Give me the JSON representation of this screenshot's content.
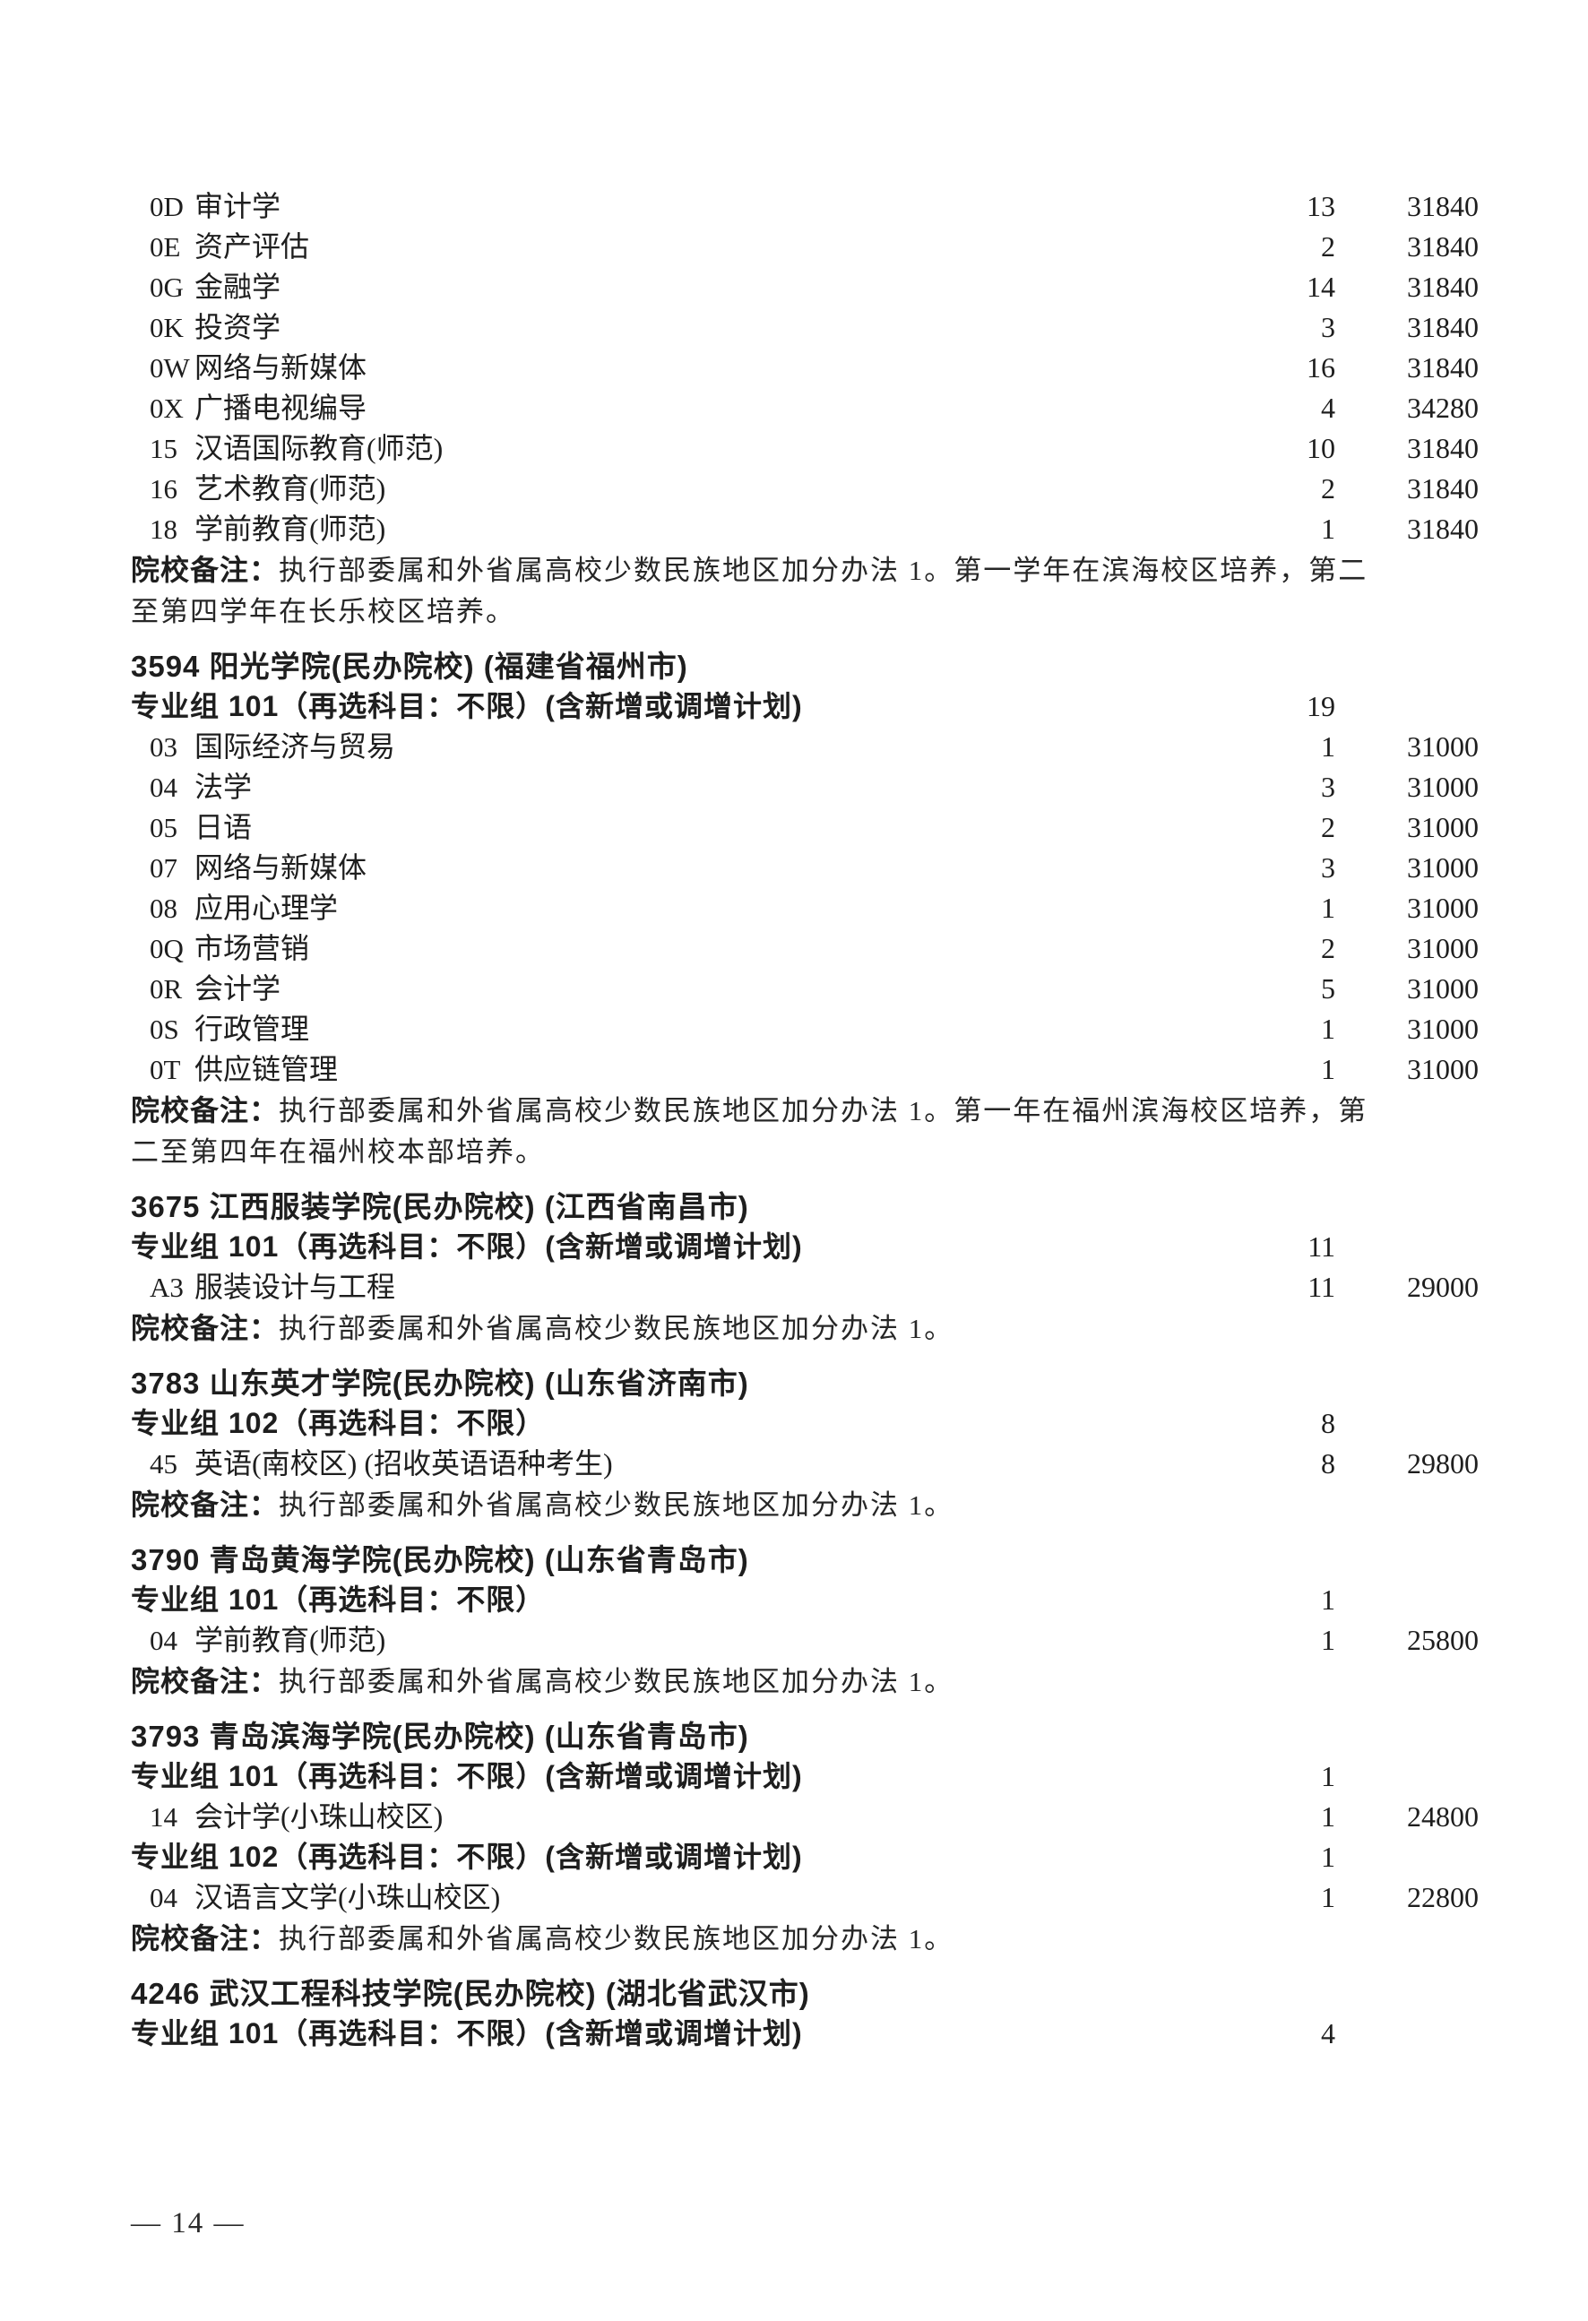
{
  "document": {
    "footer": "— 14 —",
    "page_number": "14",
    "note_label": "院校备注：",
    "text_color": "#1e1e1e",
    "background_color": "#ffffff",
    "sections": [
      {
        "school": null,
        "groups": [
          {
            "label": null,
            "count": null,
            "majors": [
              {
                "code": "0D",
                "name": "审计学",
                "count": "13",
                "fee": "31840"
              },
              {
                "code": "0E",
                "name": "资产评估",
                "count": "2",
                "fee": "31840"
              },
              {
                "code": "0G",
                "name": "金融学",
                "count": "14",
                "fee": "31840"
              },
              {
                "code": "0K",
                "name": "投资学",
                "count": "3",
                "fee": "31840"
              },
              {
                "code": "0W",
                "name": "网络与新媒体",
                "count": "16",
                "fee": "31840"
              },
              {
                "code": "0X",
                "name": "广播电视编导",
                "count": "4",
                "fee": "34280"
              },
              {
                "code": "15",
                "name": "汉语国际教育(师范)",
                "count": "10",
                "fee": "31840"
              },
              {
                "code": "16",
                "name": "艺术教育(师范)",
                "count": "2",
                "fee": "31840"
              },
              {
                "code": "18",
                "name": "学前教育(师范)",
                "count": "1",
                "fee": "31840"
              }
            ]
          }
        ],
        "note": "执行部委属和外省属高校少数民族地区加分办法 1。第一学年在滨海校区培养，第二至第四学年在长乐校区培养。"
      },
      {
        "school": {
          "code": "3594",
          "title": "阳光学院(民办院校) (福建省福州市)"
        },
        "groups": [
          {
            "label": "专业组 101（再选科目：不限）(含新增或调增计划)",
            "count": "19",
            "majors": [
              {
                "code": "03",
                "name": "国际经济与贸易",
                "count": "1",
                "fee": "31000"
              },
              {
                "code": "04",
                "name": "法学",
                "count": "3",
                "fee": "31000"
              },
              {
                "code": "05",
                "name": "日语",
                "count": "2",
                "fee": "31000"
              },
              {
                "code": "07",
                "name": "网络与新媒体",
                "count": "3",
                "fee": "31000"
              },
              {
                "code": "08",
                "name": "应用心理学",
                "count": "1",
                "fee": "31000"
              },
              {
                "code": "0Q",
                "name": "市场营销",
                "count": "2",
                "fee": "31000"
              },
              {
                "code": "0R",
                "name": "会计学",
                "count": "5",
                "fee": "31000"
              },
              {
                "code": "0S",
                "name": "行政管理",
                "count": "1",
                "fee": "31000"
              },
              {
                "code": "0T",
                "name": "供应链管理",
                "count": "1",
                "fee": "31000"
              }
            ]
          }
        ],
        "note": "执行部委属和外省属高校少数民族地区加分办法 1。第一年在福州滨海校区培养，第二至第四年在福州校本部培养。"
      },
      {
        "school": {
          "code": "3675",
          "title": "江西服装学院(民办院校) (江西省南昌市)"
        },
        "groups": [
          {
            "label": "专业组 101（再选科目：不限）(含新增或调增计划)",
            "count": "11",
            "majors": [
              {
                "code": "A3",
                "name": "服装设计与工程",
                "count": "11",
                "fee": "29000"
              }
            ]
          }
        ],
        "note": "执行部委属和外省属高校少数民族地区加分办法 1。"
      },
      {
        "school": {
          "code": "3783",
          "title": "山东英才学院(民办院校) (山东省济南市)"
        },
        "groups": [
          {
            "label": "专业组 102（再选科目：不限）",
            "count": "8",
            "majors": [
              {
                "code": "45",
                "name": "英语(南校区) (招收英语语种考生)",
                "count": "8",
                "fee": "29800"
              }
            ]
          }
        ],
        "note": "执行部委属和外省属高校少数民族地区加分办法 1。"
      },
      {
        "school": {
          "code": "3790",
          "title": "青岛黄海学院(民办院校) (山东省青岛市)"
        },
        "groups": [
          {
            "label": "专业组 101（再选科目：不限）",
            "count": "1",
            "majors": [
              {
                "code": "04",
                "name": "学前教育(师范)",
                "count": "1",
                "fee": "25800"
              }
            ]
          }
        ],
        "note": "执行部委属和外省属高校少数民族地区加分办法 1。"
      },
      {
        "school": {
          "code": "3793",
          "title": "青岛滨海学院(民办院校) (山东省青岛市)"
        },
        "groups": [
          {
            "label": "专业组 101（再选科目：不限）(含新增或调增计划)",
            "count": "1",
            "majors": [
              {
                "code": "14",
                "name": "会计学(小珠山校区)",
                "count": "1",
                "fee": "24800"
              }
            ]
          },
          {
            "label": "专业组 102（再选科目：不限）(含新增或调增计划)",
            "count": "1",
            "majors": [
              {
                "code": "04",
                "name": "汉语言文学(小珠山校区)",
                "count": "1",
                "fee": "22800"
              }
            ]
          }
        ],
        "note": "执行部委属和外省属高校少数民族地区加分办法 1。"
      },
      {
        "school": {
          "code": "4246",
          "title": "武汉工程科技学院(民办院校) (湖北省武汉市)"
        },
        "groups": [
          {
            "label": "专业组 101（再选科目：不限）(含新增或调增计划)",
            "count": "4",
            "majors": []
          }
        ],
        "note": null
      }
    ]
  }
}
